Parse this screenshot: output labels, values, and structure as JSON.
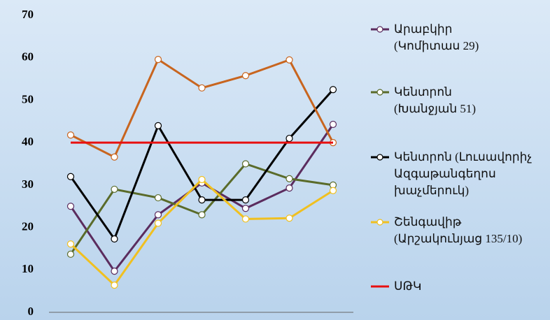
{
  "chart_data": {
    "type": "line",
    "categories": [
      null,
      null,
      null,
      null,
      null,
      null,
      null
    ],
    "ylim": [
      0,
      70
    ],
    "yticks": [
      0,
      10,
      20,
      30,
      40,
      50,
      60,
      70
    ],
    "series": [
      {
        "name": "Արաբկիր\n(Կոմիտաս 29)",
        "color": "#5b2c5e",
        "marker": true,
        "values": [
          25,
          9.7,
          23,
          30.5,
          24.5,
          29.3,
          44.3
        ]
      },
      {
        "name": "Կենտրոն\n(Խանջյան 51)",
        "color": "#5a6b2a",
        "marker": true,
        "values": [
          13.7,
          29,
          27,
          23,
          35,
          31.5,
          30
        ]
      },
      {
        "name": "Կենտրոն (Լուսավորիչ\nԱզգաթանգեղոս\nխաչմերուկ)",
        "color": "#000000",
        "marker": true,
        "values": [
          32,
          17.3,
          44,
          26.5,
          26.5,
          41,
          52.5
        ]
      },
      {
        "name": "Շենգավիթ\n(Արշակունյաց 135/10)",
        "color": "#f0c020",
        "marker": true,
        "values": [
          16.1,
          6.4,
          21,
          31.3,
          22,
          22.2,
          28.7
        ]
      },
      {
        "color": "#c8651f",
        "marker": true,
        "values": [
          41.8,
          36.6,
          59.6,
          52.9,
          55.8,
          59.5,
          40
        ]
      },
      {
        "name": "ՍԹԿ",
        "color": "#e81010",
        "marker": false,
        "values": [
          40,
          40,
          40,
          40,
          40,
          40,
          40
        ]
      }
    ]
  }
}
